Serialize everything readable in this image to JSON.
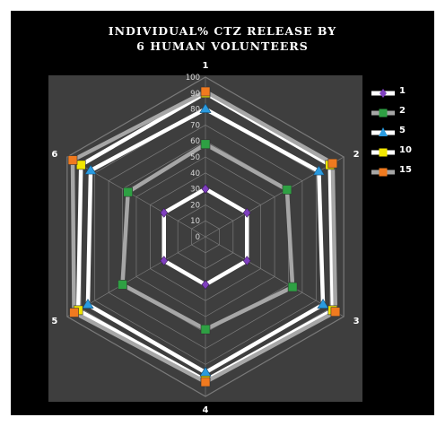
{
  "chart_data": {
    "type": "radar",
    "title_lines": [
      "INDIVIDUAL% CTZ RELEASE BY",
      "6 HUMAN VOLUNTEERS"
    ],
    "axes": [
      "1",
      "2",
      "3",
      "4",
      "5",
      "6"
    ],
    "radial_ticks": [
      "0",
      "10",
      "20",
      "30",
      "40",
      "50",
      "60",
      "70",
      "80",
      "90",
      "100"
    ],
    "rmin": 0,
    "rmax": 100,
    "grid": true,
    "legend_position": "right",
    "series": [
      {
        "name": "1",
        "values": [
          30,
          30,
          30,
          30,
          30,
          30
        ],
        "line_color": "#ffffff",
        "marker": "diamond",
        "marker_color": "#7f3fbf"
      },
      {
        "name": "2",
        "values": [
          58,
          59,
          63,
          58,
          60,
          56
        ],
        "line_color": "#a6a6a6",
        "marker": "square",
        "marker_color": "#2ea043"
      },
      {
        "name": "5",
        "values": [
          80,
          82,
          85,
          85,
          85,
          83
        ],
        "line_color": "#ffffff",
        "marker": "triangle",
        "marker_color": "#2a9be0"
      },
      {
        "name": "10",
        "values": [
          90,
          90,
          92,
          90,
          92,
          90
        ],
        "line_color": "#ffffff",
        "marker": "square",
        "marker_color": "#f2e600"
      },
      {
        "name": "15",
        "values": [
          91,
          92,
          94,
          91,
          95,
          96
        ],
        "line_color": "#a6a6a6",
        "marker": "square",
        "marker_color": "#f07a1f"
      }
    ]
  }
}
